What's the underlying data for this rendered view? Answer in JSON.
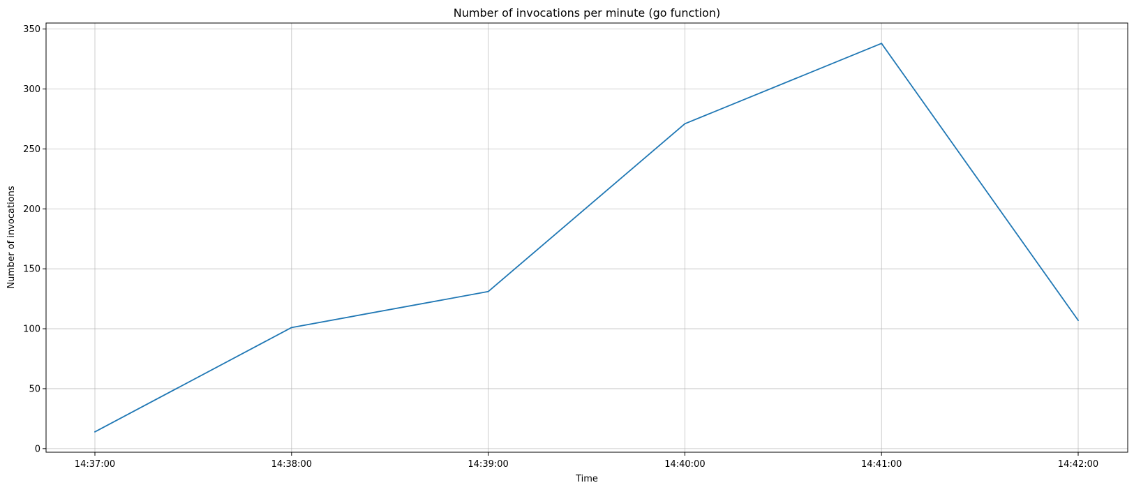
{
  "chart_data": {
    "type": "line",
    "title": "Number of invocations per minute (go function)",
    "xlabel": "Time",
    "ylabel": "Number of invocations",
    "x": [
      "14:37:00",
      "14:38:00",
      "14:39:00",
      "14:40:00",
      "14:41:00",
      "14:42:00"
    ],
    "series": [
      {
        "values": [
          14,
          101,
          131,
          271,
          338,
          107
        ],
        "color": "#1f77b4"
      }
    ],
    "ylim": [
      -3,
      355
    ],
    "yticks": [
      0,
      50,
      100,
      150,
      200,
      250,
      300,
      350
    ],
    "xticks": [
      "14:37:00",
      "14:38:00",
      "14:39:00",
      "14:40:00",
      "14:41:00",
      "14:42:00"
    ],
    "grid": true,
    "legend": "none"
  }
}
